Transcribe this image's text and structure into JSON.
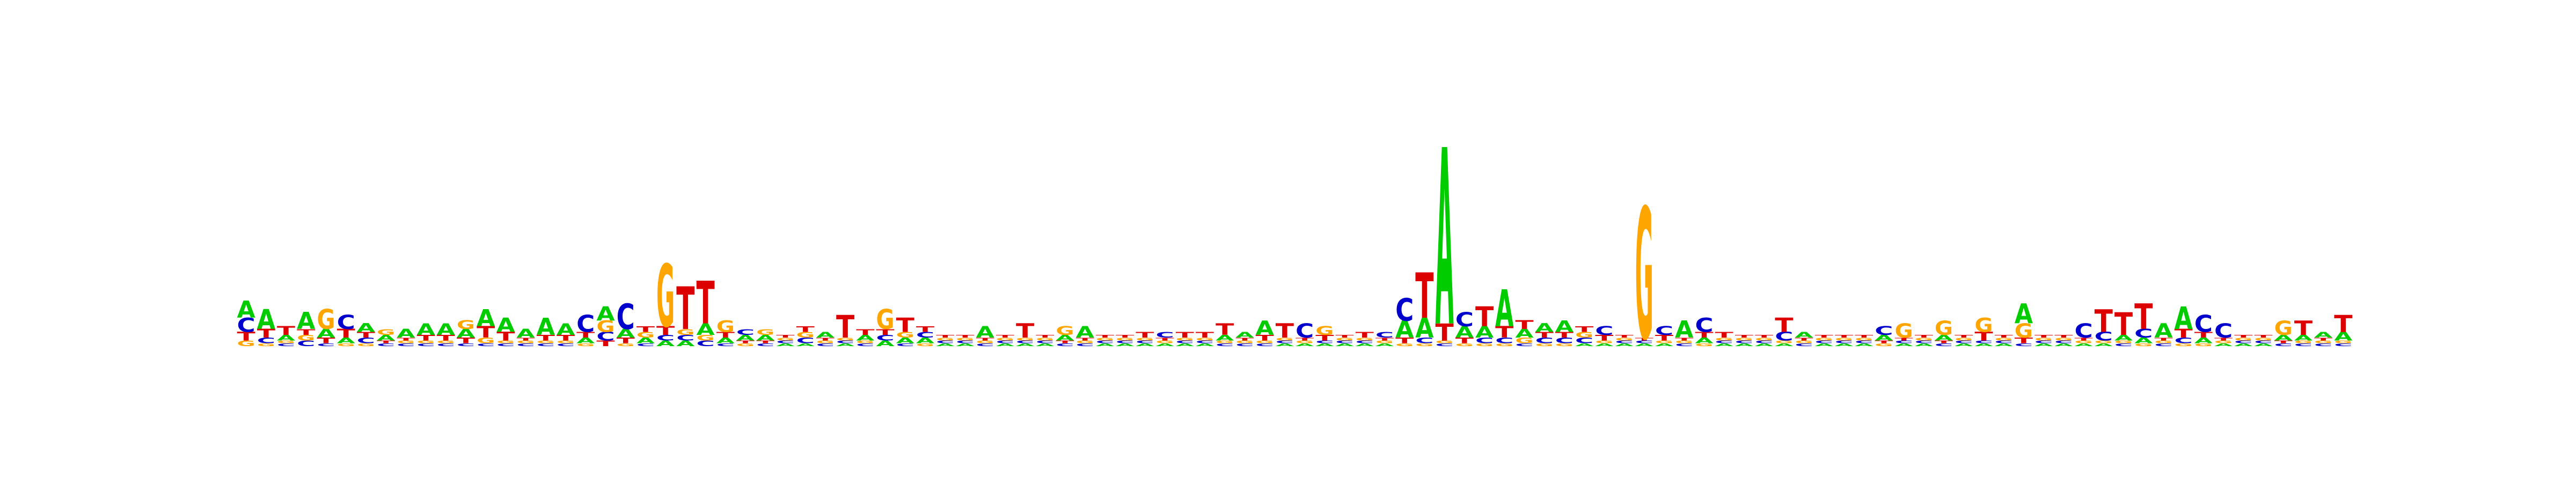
{
  "chart_data": {
    "type": "sequence-logo",
    "alphabet": [
      "A",
      "C",
      "G",
      "T"
    ],
    "colors": {
      "A": "#00cc00",
      "C": "#0000cc",
      "G": "#ffa500",
      "T": "#dd0000"
    },
    "positions": [
      {
        "A": 0.06,
        "C": 0.05,
        "G": 0.02,
        "T": 0.03
      },
      {
        "A": 0.07,
        "C": 0.02,
        "G": 0.01,
        "T": 0.03
      },
      {
        "A": 0.02,
        "C": 0.01,
        "G": 0.01,
        "T": 0.03
      },
      {
        "A": 0.06,
        "C": 0.02,
        "G": 0.02,
        "T": 0.02
      },
      {
        "A": 0.03,
        "C": 0.01,
        "G": 0.07,
        "T": 0.02
      },
      {
        "A": 0.02,
        "C": 0.05,
        "G": 0.01,
        "T": 0.03
      },
      {
        "A": 0.03,
        "C": 0.02,
        "G": 0.01,
        "T": 0.02
      },
      {
        "A": 0.02,
        "C": 0.01,
        "G": 0.02,
        "T": 0.01
      },
      {
        "A": 0.03,
        "C": 0.01,
        "G": 0.01,
        "T": 0.01
      },
      {
        "A": 0.04,
        "C": 0.01,
        "G": 0.01,
        "T": 0.02
      },
      {
        "A": 0.04,
        "C": 0.01,
        "G": 0.01,
        "T": 0.02
      },
      {
        "A": 0.03,
        "C": 0.01,
        "G": 0.03,
        "T": 0.02
      },
      {
        "A": 0.06,
        "C": 0.01,
        "G": 0.02,
        "T": 0.04
      },
      {
        "A": 0.05,
        "C": 0.01,
        "G": 0.01,
        "T": 0.03
      },
      {
        "A": 0.03,
        "C": 0.01,
        "G": 0.01,
        "T": 0.01
      },
      {
        "A": 0.06,
        "C": 0.01,
        "G": 0.01,
        "T": 0.02
      },
      {
        "A": 0.04,
        "C": 0.01,
        "G": 0.01,
        "T": 0.02
      },
      {
        "A": 0.02,
        "C": 0.06,
        "G": 0.01,
        "T": 0.02
      },
      {
        "A": 0.05,
        "C": 0.03,
        "G": 0.04,
        "T": 0.02
      },
      {
        "A": 0.03,
        "C": 0.09,
        "G": 0.01,
        "T": 0.02
      },
      {
        "A": 0.02,
        "C": 0.01,
        "G": 0.02,
        "T": 0.02
      },
      {
        "A": 0.02,
        "C": 0.02,
        "G": 0.22,
        "T": 0.03
      },
      {
        "A": 0.02,
        "C": 0.02,
        "G": 0.02,
        "T": 0.15
      },
      {
        "A": 0.04,
        "C": 0.02,
        "G": 0.02,
        "T": 0.15
      },
      {
        "A": 0.02,
        "C": 0.01,
        "G": 0.04,
        "T": 0.02
      },
      {
        "A": 0.02,
        "C": 0.02,
        "G": 0.01,
        "T": 0.01
      },
      {
        "A": 0.02,
        "C": 0.01,
        "G": 0.02,
        "T": 0.01
      },
      {
        "A": 0.01,
        "C": 0.01,
        "G": 0.01,
        "T": 0.01
      },
      {
        "A": 0.01,
        "C": 0.02,
        "G": 0.02,
        "T": 0.02
      },
      {
        "A": 0.02,
        "C": 0.01,
        "G": 0.01,
        "T": 0.01
      },
      {
        "A": 0.01,
        "C": 0.01,
        "G": 0.01,
        "T": 0.08
      },
      {
        "A": 0.02,
        "C": 0.01,
        "G": 0.01,
        "T": 0.02
      },
      {
        "A": 0.02,
        "C": 0.02,
        "G": 0.07,
        "T": 0.02
      },
      {
        "A": 0.02,
        "C": 0.01,
        "G": 0.02,
        "T": 0.05
      },
      {
        "A": 0.02,
        "C": 0.02,
        "G": 0.01,
        "T": 0.02
      },
      {
        "A": 0.01,
        "C": 0.01,
        "G": 0.01,
        "T": 0.01
      },
      {
        "A": 0.01,
        "C": 0.01,
        "G": 0.01,
        "T": 0.01
      },
      {
        "A": 0.04,
        "C": 0.01,
        "G": 0.01,
        "T": 0.01
      },
      {
        "A": 0.01,
        "C": 0.01,
        "G": 0.01,
        "T": 0.01
      },
      {
        "A": 0.01,
        "C": 0.01,
        "G": 0.01,
        "T": 0.05
      },
      {
        "A": 0.01,
        "C": 0.01,
        "G": 0.01,
        "T": 0.01
      },
      {
        "A": 0.02,
        "C": 0.01,
        "G": 0.03,
        "T": 0.01
      },
      {
        "A": 0.04,
        "C": 0.01,
        "G": 0.01,
        "T": 0.01
      },
      {
        "A": 0.01,
        "C": 0.01,
        "G": 0.01,
        "T": 0.01
      },
      {
        "A": 0.01,
        "C": 0.01,
        "G": 0.01,
        "T": 0.01
      },
      {
        "A": 0.01,
        "C": 0.01,
        "G": 0.01,
        "T": 0.02
      },
      {
        "A": 0.01,
        "C": 0.02,
        "G": 0.01,
        "T": 0.01
      },
      {
        "A": 0.01,
        "C": 0.01,
        "G": 0.01,
        "T": 0.02
      },
      {
        "A": 0.01,
        "C": 0.01,
        "G": 0.01,
        "T": 0.02
      },
      {
        "A": 0.02,
        "C": 0.01,
        "G": 0.01,
        "T": 0.04
      },
      {
        "A": 0.02,
        "C": 0.01,
        "G": 0.01,
        "T": 0.01
      },
      {
        "A": 0.05,
        "C": 0.01,
        "G": 0.01,
        "T": 0.02
      },
      {
        "A": 0.01,
        "C": 0.01,
        "G": 0.01,
        "T": 0.05
      },
      {
        "A": 0.01,
        "C": 0.05,
        "G": 0.01,
        "T": 0.01
      },
      {
        "A": 0.01,
        "C": 0.01,
        "G": 0.03,
        "T": 0.02
      },
      {
        "A": 0.01,
        "C": 0.01,
        "G": 0.01,
        "T": 0.01
      },
      {
        "A": 0.01,
        "C": 0.01,
        "G": 0.01,
        "T": 0.02
      },
      {
        "A": 0.01,
        "C": 0.02,
        "G": 0.01,
        "T": 0.01
      },
      {
        "A": 0.06,
        "C": 0.08,
        "G": 0.01,
        "T": 0.02
      },
      {
        "A": 0.07,
        "C": 0.02,
        "G": 0.01,
        "T": 0.16
      },
      {
        "A": 0.62,
        "C": 0.01,
        "G": 0.01,
        "T": 0.06
      },
      {
        "A": 0.04,
        "C": 0.05,
        "G": 0.01,
        "T": 0.02
      },
      {
        "A": 0.04,
        "C": 0.02,
        "G": 0.01,
        "T": 0.07
      },
      {
        "A": 0.13,
        "C": 0.02,
        "G": 0.01,
        "T": 0.04
      },
      {
        "A": 0.03,
        "C": 0.01,
        "G": 0.02,
        "T": 0.03
      },
      {
        "A": 0.03,
        "C": 0.02,
        "G": 0.01,
        "T": 0.02
      },
      {
        "A": 0.04,
        "C": 0.02,
        "G": 0.01,
        "T": 0.02
      },
      {
        "A": 0.01,
        "C": 0.02,
        "G": 0.02,
        "T": 0.02
      },
      {
        "A": 0.01,
        "C": 0.03,
        "G": 0.01,
        "T": 0.02
      },
      {
        "A": 0.01,
        "C": 0.01,
        "G": 0.01,
        "T": 0.01
      },
      {
        "A": 0.01,
        "C": 0.01,
        "G": 0.46,
        "T": 0.01
      },
      {
        "A": 0.01,
        "C": 0.03,
        "G": 0.01,
        "T": 0.02
      },
      {
        "A": 0.06,
        "C": 0.01,
        "G": 0.01,
        "T": 0.01
      },
      {
        "A": 0.02,
        "C": 0.05,
        "G": 0.01,
        "T": 0.02
      },
      {
        "A": 0.01,
        "C": 0.01,
        "G": 0.01,
        "T": 0.02
      },
      {
        "A": 0.01,
        "C": 0.01,
        "G": 0.01,
        "T": 0.01
      },
      {
        "A": 0.01,
        "C": 0.01,
        "G": 0.01,
        "T": 0.01
      },
      {
        "A": 0.01,
        "C": 0.03,
        "G": 0.01,
        "T": 0.05
      },
      {
        "A": 0.02,
        "C": 0.01,
        "G": 0.01,
        "T": 0.01
      },
      {
        "A": 0.01,
        "C": 0.01,
        "G": 0.01,
        "T": 0.01
      },
      {
        "A": 0.01,
        "C": 0.01,
        "G": 0.01,
        "T": 0.01
      },
      {
        "A": 0.01,
        "C": 0.01,
        "G": 0.01,
        "T": 0.01
      },
      {
        "A": 0.02,
        "C": 0.03,
        "G": 0.01,
        "T": 0.01
      },
      {
        "A": 0.01,
        "C": 0.01,
        "G": 0.05,
        "T": 0.01
      },
      {
        "A": 0.01,
        "C": 0.01,
        "G": 0.01,
        "T": 0.01
      },
      {
        "A": 0.02,
        "C": 0.01,
        "G": 0.05,
        "T": 0.01
      },
      {
        "A": 0.01,
        "C": 0.01,
        "G": 0.01,
        "T": 0.01
      },
      {
        "A": 0.01,
        "C": 0.01,
        "G": 0.05,
        "T": 0.03
      },
      {
        "A": 0.01,
        "C": 0.01,
        "G": 0.01,
        "T": 0.01
      },
      {
        "A": 0.07,
        "C": 0.01,
        "G": 0.05,
        "T": 0.02
      },
      {
        "A": 0.01,
        "C": 0.01,
        "G": 0.01,
        "T": 0.01
      },
      {
        "A": 0.01,
        "C": 0.01,
        "G": 0.01,
        "T": 0.01
      },
      {
        "A": 0.01,
        "C": 0.05,
        "G": 0.01,
        "T": 0.01
      },
      {
        "A": 0.01,
        "C": 0.03,
        "G": 0.01,
        "T": 0.08
      },
      {
        "A": 0.02,
        "C": 0.01,
        "G": 0.01,
        "T": 0.08
      },
      {
        "A": 0.02,
        "C": 0.03,
        "G": 0.01,
        "T": 0.09
      },
      {
        "A": 0.05,
        "C": 0.01,
        "G": 0.01,
        "T": 0.01
      },
      {
        "A": 0.08,
        "C": 0.02,
        "G": 0.01,
        "T": 0.03
      },
      {
        "A": 0.02,
        "C": 0.06,
        "G": 0.01,
        "T": 0.02
      },
      {
        "A": 0.01,
        "C": 0.05,
        "G": 0.01,
        "T": 0.01
      },
      {
        "A": 0.01,
        "C": 0.01,
        "G": 0.01,
        "T": 0.01
      },
      {
        "A": 0.01,
        "C": 0.01,
        "G": 0.01,
        "T": 0.01
      },
      {
        "A": 0.02,
        "C": 0.01,
        "G": 0.05,
        "T": 0.01
      },
      {
        "A": 0.02,
        "C": 0.01,
        "G": 0.01,
        "T": 0.05
      },
      {
        "A": 0.02,
        "C": 0.01,
        "G": 0.01,
        "T": 0.01
      },
      {
        "A": 0.03,
        "C": 0.01,
        "G": 0.01,
        "T": 0.06
      }
    ]
  }
}
